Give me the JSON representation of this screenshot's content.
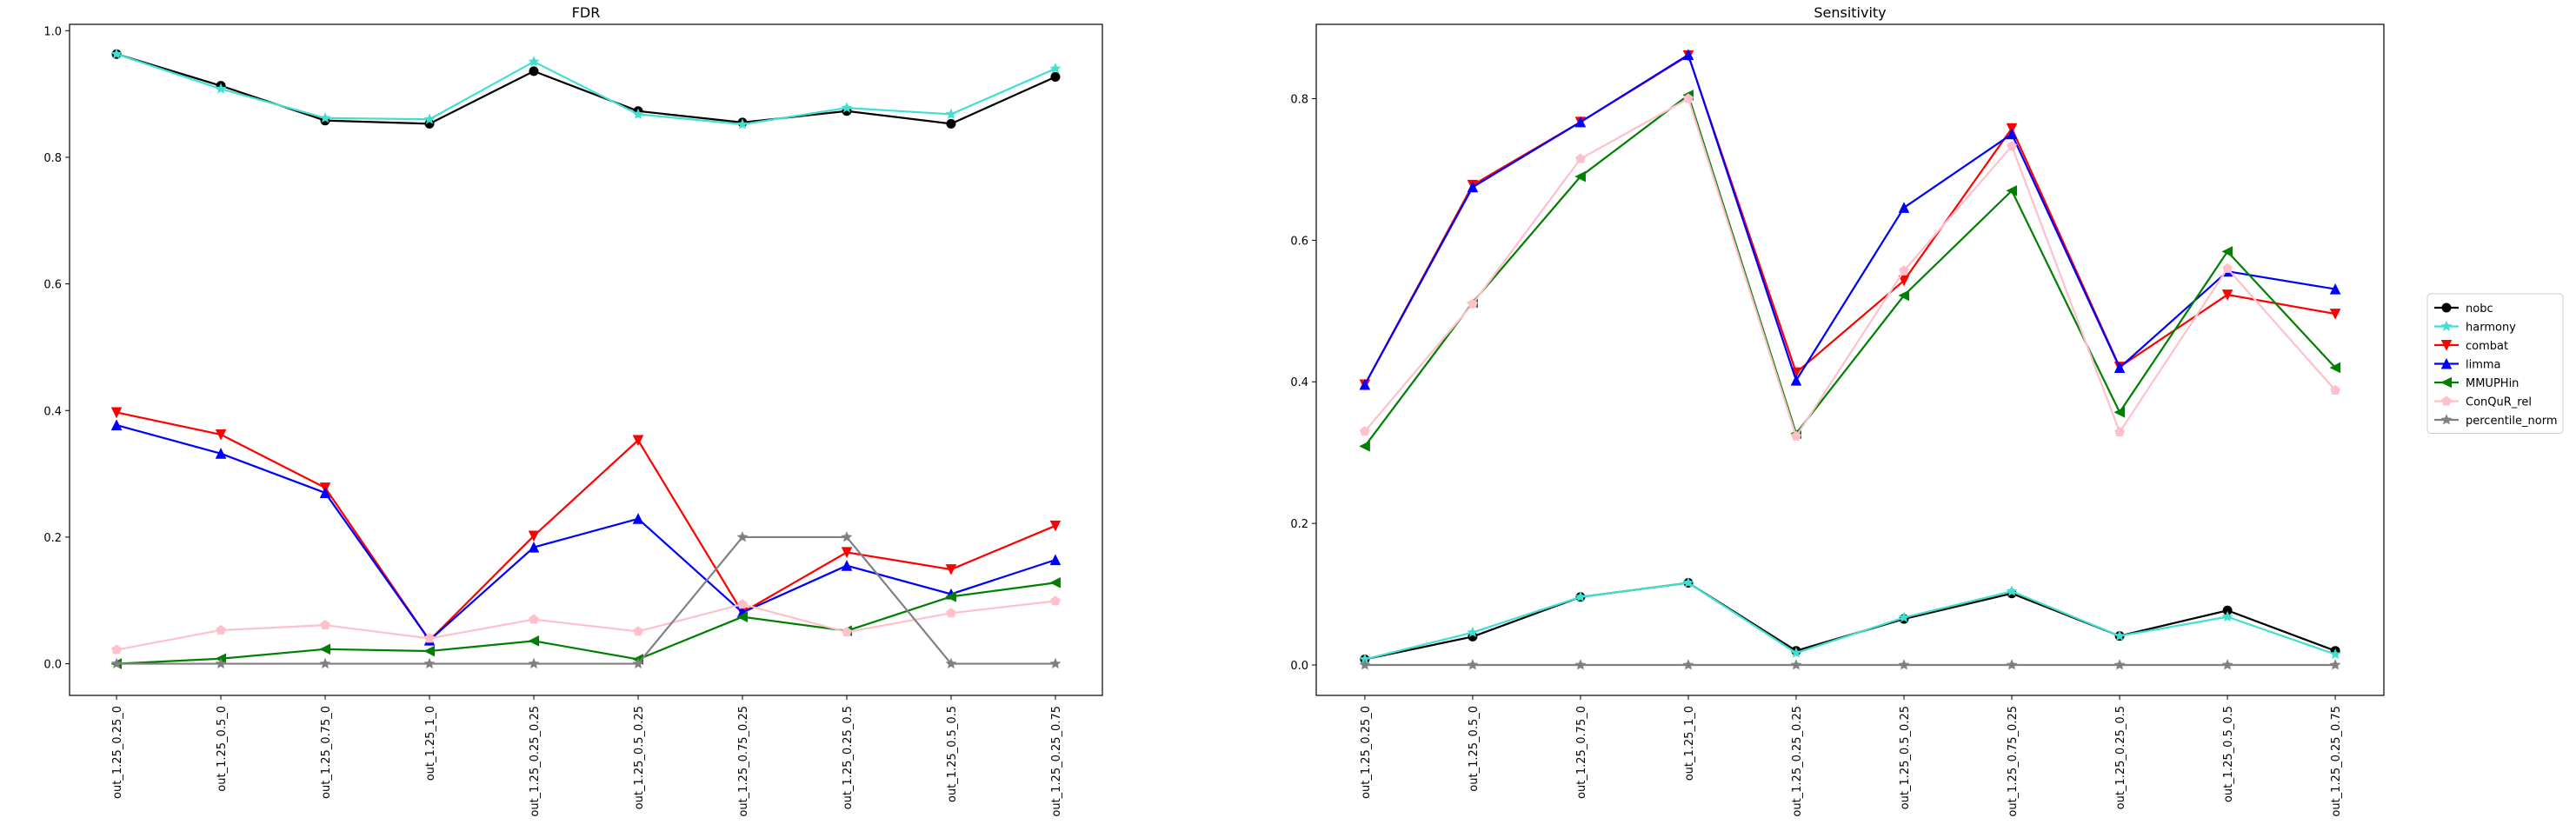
{
  "categories": [
    "out_1.25_0.25_0",
    "out_1.25_0.5_0",
    "out_1.25_0.75_0",
    "out_1.25_1_0",
    "out_1.25_0.25_0.25",
    "out_1.25_0.5_0.25",
    "out_1.25_0.75_0.25",
    "out_1.25_0.25_0.5",
    "out_1.25_0.5_0.5",
    "out_1.25_0.25_0.75"
  ],
  "legend": {
    "placement": "right",
    "entries": [
      {
        "name": "nobc",
        "color": "#000000",
        "marker": "circle"
      },
      {
        "name": "harmony",
        "color": "#40e0d0",
        "marker": "star"
      },
      {
        "name": "combat",
        "color": "#ff0000",
        "marker": "triangle-down"
      },
      {
        "name": "limma",
        "color": "#0000ff",
        "marker": "triangle-up"
      },
      {
        "name": "MMUPHin",
        "color": "#008000",
        "marker": "triangle-left"
      },
      {
        "name": "ConQuR_rel",
        "color": "#ffc0cb",
        "marker": "pentagon"
      },
      {
        "name": "percentile_norm",
        "color": "#808080",
        "marker": "star"
      }
    ]
  },
  "chart_data": [
    {
      "type": "line",
      "title": "FDR",
      "xlabel": "",
      "ylabel": "",
      "ylim": [
        -0.05,
        1.01
      ],
      "yticks": [
        "0.0",
        "0.2",
        "0.4",
        "0.6",
        "0.8",
        "1.0"
      ],
      "grid": false,
      "series": [
        {
          "name": "nobc",
          "values": [
            0.963,
            0.913,
            0.858,
            0.853,
            0.936,
            0.873,
            0.855,
            0.873,
            0.853,
            0.927
          ]
        },
        {
          "name": "harmony",
          "values": [
            0.963,
            0.908,
            0.862,
            0.86,
            0.951,
            0.868,
            0.852,
            0.878,
            0.868,
            0.94
          ]
        },
        {
          "name": "combat",
          "values": [
            0.397,
            0.362,
            0.278,
            0.037,
            0.202,
            0.353,
            0.081,
            0.176,
            0.149,
            0.218
          ]
        },
        {
          "name": "limma",
          "values": [
            0.377,
            0.332,
            0.27,
            0.037,
            0.184,
            0.229,
            0.081,
            0.155,
            0.11,
            0.164
          ]
        },
        {
          "name": "MMUPHin",
          "values": [
            0.0,
            0.008,
            0.023,
            0.02,
            0.036,
            0.007,
            0.074,
            0.052,
            0.106,
            0.128
          ]
        },
        {
          "name": "ConQuR_rel",
          "values": [
            0.022,
            0.053,
            0.061,
            0.04,
            0.07,
            0.051,
            0.094,
            0.05,
            0.08,
            0.099
          ]
        },
        {
          "name": "percentile_norm",
          "values": [
            0.0,
            0.0,
            0.0,
            0.0,
            0.0,
            0.0,
            0.2,
            0.2,
            0.0,
            0.0
          ]
        }
      ]
    },
    {
      "type": "line",
      "title": "Sensitivity",
      "xlabel": "",
      "ylabel": "",
      "ylim": [
        -0.043,
        0.905
      ],
      "yticks": [
        "0.0",
        "0.2",
        "0.4",
        "0.6",
        "0.8"
      ],
      "grid": false,
      "series": [
        {
          "name": "nobc",
          "values": [
            0.008,
            0.04,
            0.096,
            0.116,
            0.02,
            0.065,
            0.101,
            0.041,
            0.077,
            0.02
          ]
        },
        {
          "name": "harmony",
          "values": [
            0.008,
            0.046,
            0.096,
            0.116,
            0.017,
            0.067,
            0.104,
            0.041,
            0.068,
            0.015
          ]
        },
        {
          "name": "combat",
          "values": [
            0.396,
            0.678,
            0.767,
            0.861,
            0.413,
            0.543,
            0.758,
            0.421,
            0.523,
            0.496
          ]
        },
        {
          "name": "limma",
          "values": [
            0.396,
            0.675,
            0.767,
            0.862,
            0.402,
            0.646,
            0.75,
            0.42,
            0.556,
            0.531
          ]
        },
        {
          "name": "MMUPHin",
          "values": [
            0.309,
            0.512,
            0.69,
            0.805,
            0.327,
            0.522,
            0.67,
            0.357,
            0.584,
            0.42
          ]
        },
        {
          "name": "ConQuR_rel",
          "values": [
            0.33,
            0.51,
            0.715,
            0.8,
            0.323,
            0.557,
            0.733,
            0.329,
            0.56,
            0.388
          ]
        },
        {
          "name": "percentile_norm",
          "values": [
            0.0,
            0.0,
            0.0,
            0.0,
            0.0,
            0.0,
            0.0,
            0.0,
            0.0,
            0.0
          ]
        }
      ]
    }
  ]
}
